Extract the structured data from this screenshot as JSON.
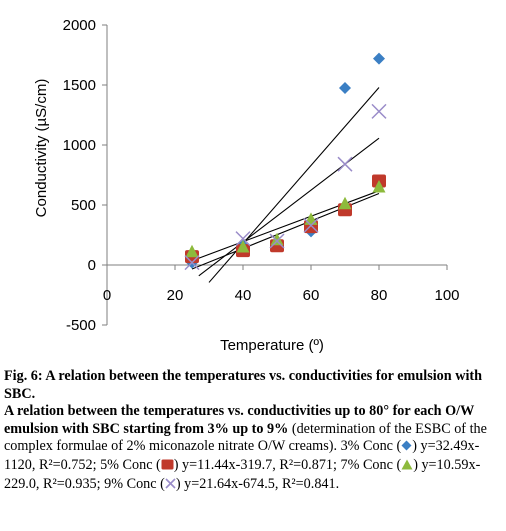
{
  "chart_data": {
    "type": "scatter",
    "ylabel": "Conductivity (µS/cm)",
    "xlabel": "Temperature (º)",
    "xlim": [
      0,
      100
    ],
    "ylim": [
      -500,
      2000
    ],
    "x_ticks": [
      "0",
      "20",
      "40",
      "60",
      "80",
      "100"
    ],
    "y_ticks": [
      "-500",
      "0",
      "500",
      "1000",
      "1500",
      "2000"
    ],
    "x_tick_values": [
      0,
      20,
      40,
      60,
      80,
      100
    ],
    "y_tick_values": [
      -500,
      0,
      500,
      1000,
      1500,
      2000
    ],
    "grid": false,
    "legend": "none",
    "series": [
      {
        "marker": "diamond",
        "color": "#3b7fc4",
        "x": [
          25,
          40,
          50,
          60,
          70,
          80
        ],
        "y": [
          20,
          160,
          180,
          280,
          1475,
          1720
        ],
        "trend": {
          "slope": 32.49,
          "intercept": -1120,
          "x_from": 30,
          "x_to": 80
        }
      },
      {
        "marker": "square",
        "color": "#c0392b",
        "x": [
          25,
          40,
          50,
          60,
          70,
          80
        ],
        "y": [
          70,
          120,
          160,
          320,
          460,
          700
        ],
        "trend": {
          "slope": 11.44,
          "intercept": -319.7,
          "x_from": 25,
          "x_to": 80
        }
      },
      {
        "marker": "triangle",
        "color": "#8dba3c",
        "x": [
          25,
          40,
          50,
          60,
          70,
          80
        ],
        "y": [
          110,
          150,
          210,
          380,
          510,
          650
        ],
        "trend": {
          "slope": 10.59,
          "intercept": -229.0,
          "x_from": 25,
          "x_to": 80
        }
      },
      {
        "marker": "x",
        "color": "#9a8cc9",
        "x": [
          25,
          40,
          50,
          60,
          70,
          80
        ],
        "y": [
          20,
          220,
          200,
          330,
          840,
          1280
        ],
        "trend": {
          "slope": 21.64,
          "intercept": -674.5,
          "x_from": 27,
          "x_to": 80
        }
      }
    ]
  },
  "caption": {
    "fig_title": "Fig. 6: A relation between the temperatures vs. conductivities for emulsion with SBC.",
    "desc_bold": "A relation between the temperatures vs. conductivities up to 80° for each O/W emulsion with SBC starting from 3% up to 9%",
    "desc_normal": " (determination of the ESBC of the complex formulae of 2% miconazole nitrate O/W creams). ",
    "entries": [
      {
        "prefix": "3% Conc (",
        "suffix": ") y=32.49x-1120, R²=0.752; "
      },
      {
        "prefix": "5% Conc (",
        "suffix": ") y=11.44x-319.7, R²=0.871; "
      },
      {
        "prefix": "7% Conc (",
        "suffix": ") y=10.59x-229.0, R²=0.935; "
      },
      {
        "prefix": "9% Conc (",
        "suffix": ") y=21.64x-674.5, R²=0.841."
      }
    ],
    "glyph_colors": [
      "#3b7fc4",
      "#c0392b",
      "#8dba3c",
      "#9a8cc9"
    ]
  }
}
